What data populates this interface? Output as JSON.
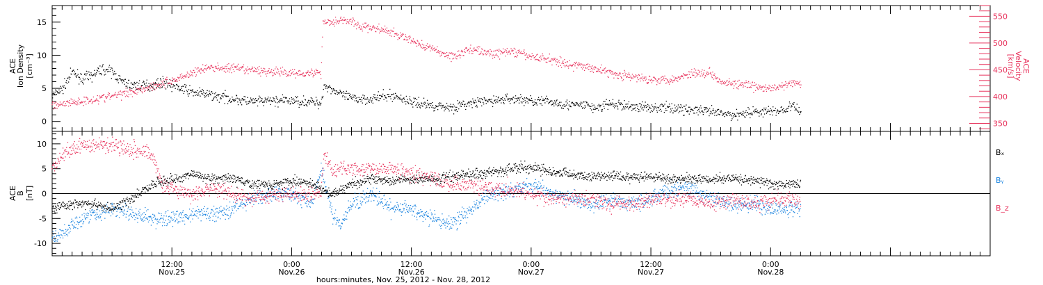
{
  "colors": {
    "black": "#000000",
    "red": "#e8365f",
    "blue": "#1f86e0"
  },
  "x_axis": {
    "xlim": [
      0,
      94
    ],
    "major_ticks": [
      {
        "x": 12,
        "time": "12:00",
        "date": "Nov.25"
      },
      {
        "x": 24,
        "time": "0:00",
        "date": "Nov.26"
      },
      {
        "x": 36,
        "time": "12:00",
        "date": "Nov.26"
      },
      {
        "x": 48,
        "time": "0:00",
        "date": "Nov.27"
      },
      {
        "x": 60,
        "time": "12:00",
        "date": "Nov.27"
      },
      {
        "x": 72,
        "time": "0:00",
        "date": "Nov.28"
      }
    ],
    "caption": "hours:minutes, Nov. 25, 2012 - Nov. 28, 2012"
  },
  "chart_data": [
    {
      "type": "scatter",
      "panel": "top",
      "ylabel_left": [
        "ACE",
        "Ion Density",
        "[cm⁻³]"
      ],
      "ylabel_right": [
        "ACE",
        "Velocity",
        "[km/s]"
      ],
      "ylim_left": [
        -1.5,
        17.5
      ],
      "ylim_right": [
        335,
        570
      ],
      "yticks_left": [
        0,
        5,
        10,
        15
      ],
      "yticks_right": [
        350,
        400,
        450,
        500,
        550
      ],
      "series": [
        {
          "key": "density",
          "axis": "left",
          "color": "black",
          "x": [
            0,
            1,
            2,
            3,
            4,
            5,
            6,
            7,
            8,
            9,
            10,
            11,
            12,
            13,
            14,
            16,
            18,
            20,
            22,
            24,
            26,
            26.9,
            27.2,
            28,
            29,
            30,
            32,
            34,
            36,
            38,
            40,
            42,
            44,
            46,
            48,
            50,
            52,
            53.8,
            54.2,
            56,
            58,
            60,
            62,
            64,
            66,
            68,
            70,
            72,
            73.5,
            74,
            75
          ],
          "y": [
            4,
            5,
            7.5,
            6.5,
            7,
            8,
            7.5,
            6,
            5.5,
            5.5,
            5.5,
            6,
            5.5,
            5,
            4.5,
            4,
            3.5,
            3,
            3.2,
            3.2,
            3,
            2.8,
            5.5,
            5,
            4,
            3.5,
            3.5,
            4,
            3,
            2.5,
            2.2,
            2.8,
            3.2,
            3.5,
            3.2,
            3,
            2.5,
            2.5,
            2,
            2.7,
            2.3,
            2.2,
            2.1,
            1.8,
            1.5,
            1,
            1.5,
            1.6,
            1.8,
            2.5,
            1.5
          ]
        },
        {
          "key": "velocity",
          "axis": "right",
          "color": "red",
          "x": [
            0,
            2,
            4,
            6,
            8,
            10,
            12,
            13,
            14,
            15,
            16,
            18,
            20,
            22,
            24,
            26,
            26.9,
            27.1,
            28,
            29,
            30,
            31,
            32,
            34,
            36,
            38,
            40,
            42,
            44,
            46,
            48,
            50,
            52,
            54,
            56,
            58,
            60,
            62,
            63,
            64,
            66,
            67,
            68,
            70,
            72,
            73,
            74,
            75
          ],
          "y": [
            385,
            390,
            395,
            402,
            410,
            420,
            430,
            438,
            445,
            452,
            455,
            453,
            450,
            447,
            445,
            445,
            445,
            540,
            540,
            545,
            540,
            530,
            530,
            520,
            505,
            490,
            475,
            490,
            480,
            485,
            475,
            470,
            460,
            455,
            445,
            437,
            433,
            433,
            437,
            445,
            445,
            430,
            425,
            420,
            415,
            420,
            425,
            425
          ]
        }
      ]
    },
    {
      "type": "scatter",
      "panel": "bottom",
      "ylabel_left": [
        "ACE",
        "B",
        "[nT]"
      ],
      "ylim": [
        -12.5,
        12.5
      ],
      "yticks": [
        -10,
        -5,
        0,
        5,
        10
      ],
      "zero_line": true,
      "legend": [
        "Bₓ",
        "Bᵧ",
        "B_z"
      ],
      "series": [
        {
          "key": "bx",
          "name": "Bₓ",
          "color": "black",
          "x": [
            0,
            2,
            4,
            6,
            8,
            10,
            12,
            14,
            16,
            18,
            20,
            22,
            24,
            26,
            27,
            28,
            30,
            32,
            34,
            36,
            38,
            40,
            42,
            44,
            46,
            48,
            50,
            52,
            54,
            56,
            58,
            60,
            62,
            64,
            66,
            68,
            70,
            72,
            74,
            75
          ],
          "y": [
            -3,
            -2,
            -2,
            -3,
            -1,
            2,
            3,
            4,
            3,
            3,
            2,
            2,
            2.5,
            2,
            1,
            0,
            2,
            3,
            2.5,
            3,
            3,
            3.5,
            4,
            4.5,
            5,
            5.5,
            4.5,
            4,
            3.5,
            3.5,
            3.5,
            3.5,
            3,
            3,
            3,
            3,
            3,
            2,
            2,
            2
          ]
        },
        {
          "key": "by",
          "name": "Bᵧ",
          "color": "blue",
          "x": [
            0,
            1,
            2,
            3,
            4,
            6,
            8,
            10,
            12,
            14,
            16,
            18,
            20,
            22,
            24,
            26,
            27,
            28,
            29,
            30,
            32,
            34,
            36,
            38,
            40,
            42,
            44,
            46,
            48,
            50,
            52,
            54,
            56,
            58,
            60,
            62,
            64,
            66,
            68,
            70,
            72,
            74,
            75
          ],
          "y": [
            -9,
            -8,
            -6,
            -5,
            -4,
            -3,
            -4,
            -5,
            -5,
            -4,
            -4,
            -3,
            -1,
            0,
            0,
            -2,
            5,
            -4,
            -6,
            -2,
            0,
            -3,
            -3,
            -5,
            -6,
            -3,
            0,
            1,
            2,
            0,
            -1,
            -2,
            -1,
            -2,
            -1,
            1,
            1,
            -1,
            -2,
            -2,
            -3,
            -3,
            -3
          ]
        },
        {
          "key": "bz",
          "name": "B_z",
          "color": "red",
          "x": [
            0,
            1,
            2,
            4,
            6,
            8,
            10,
            11,
            12,
            14,
            16,
            18,
            20,
            22,
            24,
            26,
            26.9,
            27.2,
            28,
            30,
            32,
            34,
            36,
            38,
            40,
            42,
            44,
            46,
            48,
            50,
            52,
            54,
            56,
            58,
            60,
            62,
            64,
            66,
            68,
            70,
            72,
            74,
            75
          ],
          "y": [
            5,
            8,
            9,
            10,
            10,
            9,
            8,
            2,
            1,
            0,
            1,
            0,
            -1,
            0,
            0,
            0,
            0,
            8,
            5,
            5,
            5,
            5,
            4,
            3,
            2,
            2,
            1,
            1,
            0,
            -1,
            -1,
            -1,
            -2,
            -2,
            -1,
            -1,
            -1,
            -2,
            -1,
            -2,
            -1,
            -1,
            -2
          ]
        }
      ]
    }
  ]
}
